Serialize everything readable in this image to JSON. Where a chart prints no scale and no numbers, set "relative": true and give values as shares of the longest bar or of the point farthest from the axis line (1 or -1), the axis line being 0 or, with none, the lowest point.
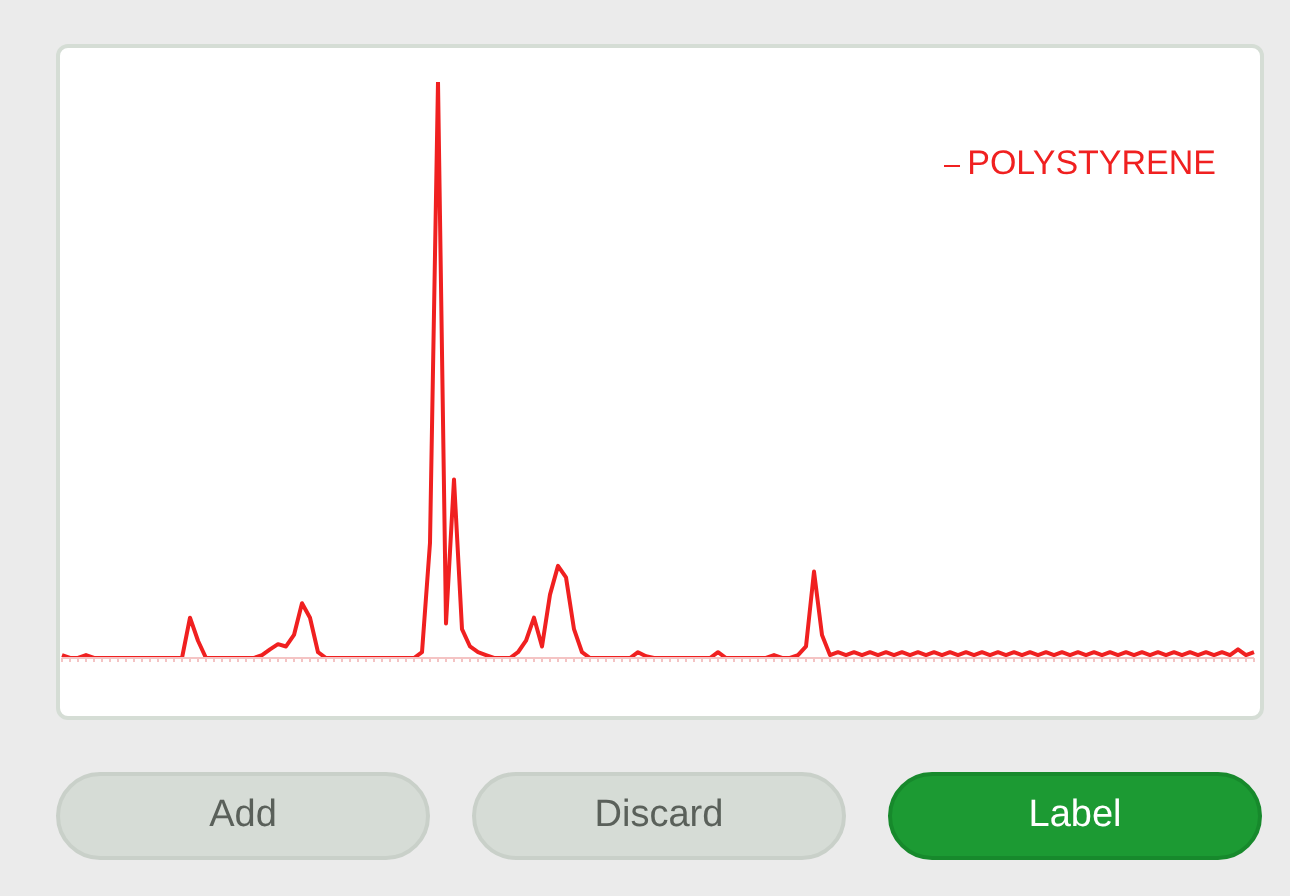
{
  "chart_data": {
    "type": "line",
    "relative": true,
    "legend": "top right",
    "marker": "none",
    "grid": false,
    "categories": [
      null,
      null,
      null,
      null,
      null,
      null,
      null,
      null,
      null,
      null,
      null,
      null,
      null,
      null,
      null,
      null,
      null,
      null,
      null,
      null,
      null,
      null,
      null,
      null,
      null,
      null,
      null,
      null,
      null,
      null,
      null,
      null,
      null,
      null,
      null,
      null,
      null,
      null,
      null,
      null,
      null,
      null,
      null,
      null,
      null,
      null,
      null,
      null,
      null,
      null,
      null,
      null,
      null,
      null,
      null,
      null,
      null,
      null,
      null,
      null,
      null,
      null,
      null,
      null,
      null,
      null,
      null,
      null,
      null,
      null,
      null,
      null,
      null,
      null,
      null,
      null,
      null,
      null,
      null,
      null,
      null,
      null,
      null,
      null,
      null,
      null,
      null,
      null,
      null,
      null,
      null,
      null,
      null,
      null,
      null,
      null,
      null,
      null,
      null,
      null,
      null,
      null,
      null,
      null,
      null,
      null,
      null,
      null,
      null,
      null,
      null,
      null,
      null,
      null,
      null,
      null,
      null,
      null,
      null,
      null,
      null,
      null,
      null,
      null,
      null,
      null,
      null,
      null,
      null,
      null,
      null,
      null,
      null,
      null,
      null,
      null,
      null,
      null,
      null,
      null,
      null,
      null,
      null,
      null,
      null,
      null,
      null,
      null,
      null,
      null
    ],
    "series": [
      {
        "name": "POLYSTYRENE",
        "color": "#f02020",
        "values": [
          0.005,
          0,
          0,
          0.005,
          0,
          0,
          0,
          0,
          0,
          0,
          0,
          0,
          0,
          0,
          0,
          0,
          0.07,
          0.03,
          0,
          0,
          0,
          0,
          0,
          0,
          0,
          0.005,
          0.015,
          0.024,
          0.02,
          0.04,
          0.095,
          0.07,
          0.01,
          0,
          0,
          0,
          0,
          0,
          0,
          0,
          0,
          0,
          0,
          0,
          0,
          0.01,
          0.2,
          1.0,
          0.06,
          0.31,
          0.05,
          0.02,
          0.01,
          0.005,
          0,
          0,
          0,
          0.01,
          0.03,
          0.07,
          0.02,
          0.11,
          0.16,
          0.14,
          0.05,
          0.01,
          0,
          0,
          0,
          0,
          0,
          0,
          0.01,
          0.003,
          0,
          0,
          0,
          0,
          0,
          0,
          0,
          0,
          0.01,
          0,
          0,
          0,
          0,
          0,
          0,
          0.005,
          0,
          0,
          0.005,
          0.02,
          0.15,
          0.04,
          0.005,
          0.01,
          0.005,
          0.01,
          0.005,
          0.01,
          0.005,
          0.01,
          0.005,
          0.01,
          0.005,
          0.01,
          0.005,
          0.01,
          0.005,
          0.01,
          0.005,
          0.01,
          0.005,
          0.01,
          0.005,
          0.01,
          0.005,
          0.01,
          0.005,
          0.01,
          0.005,
          0.01,
          0.005,
          0.01,
          0.005,
          0.01,
          0.005,
          0.01,
          0.005,
          0.01,
          0.005,
          0.01,
          0.005,
          0.01,
          0.005,
          0.01,
          0.005,
          0.01,
          0.005,
          0.01,
          0.005,
          0.01,
          0.005,
          0.01,
          0.005,
          0.015,
          0.005,
          0.01
        ]
      }
    ],
    "annotations": [
      "Add",
      "Discard",
      "Label"
    ]
  }
}
